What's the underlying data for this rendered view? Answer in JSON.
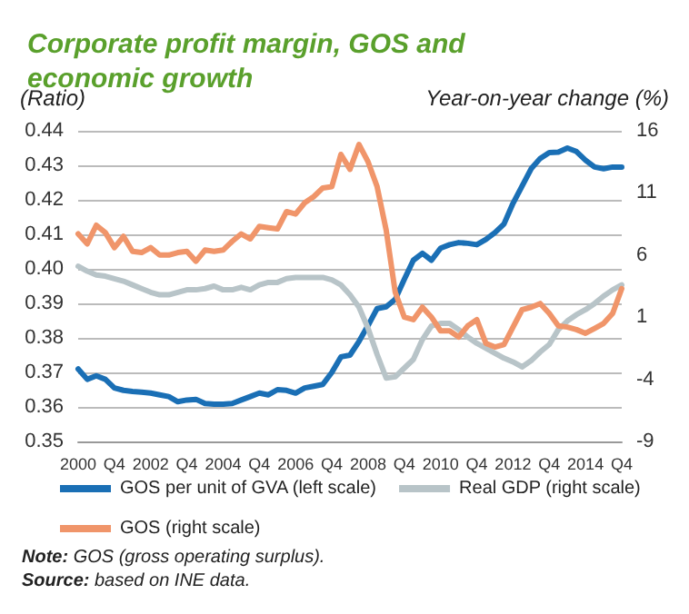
{
  "chart_data": {
    "type": "line",
    "title": "Corporate profit margin, GOS and economic growth",
    "ylabel": "(Ratio)",
    "y2label": "Year-on-year change (%)",
    "categories": [
      "2000",
      null,
      null,
      null,
      "Q4",
      null,
      null,
      null,
      "2002",
      null,
      null,
      null,
      "Q4",
      null,
      null,
      null,
      "2004",
      null,
      null,
      null,
      "Q4",
      null,
      null,
      null,
      "2006",
      null,
      null,
      null,
      "Q4",
      null,
      null,
      null,
      "2008",
      null,
      null,
      null,
      "Q4",
      null,
      null,
      null,
      "2010",
      null,
      null,
      null,
      "Q4",
      null,
      null,
      null,
      "2012",
      null,
      null,
      null,
      "Q4",
      null,
      null,
      null,
      "2014",
      null,
      null,
      null,
      "Q4"
    ],
    "series": [
      {
        "name": "GOS per unit of GVA (left scale)",
        "color": "#1a6fb5",
        "values": [
          0.371,
          0.368,
          0.369,
          0.368,
          0.3655,
          0.3648,
          0.3645,
          0.3643,
          0.364,
          0.3635,
          0.363,
          0.3615,
          0.362,
          0.3622,
          0.361,
          0.3608,
          0.3608,
          0.361,
          0.362,
          0.363,
          0.364,
          0.3635,
          0.365,
          0.3648,
          0.364,
          0.3655,
          0.366,
          0.3665,
          0.37,
          0.3745,
          0.375,
          0.379,
          0.3836,
          0.3885,
          0.389,
          0.3912,
          0.397,
          0.4025,
          0.4045,
          0.4025,
          0.406,
          0.407,
          0.4076,
          0.4074,
          0.407,
          0.4085,
          0.4105,
          0.413,
          0.419,
          0.424,
          0.429,
          0.432,
          0.4337,
          0.4338,
          0.435,
          0.434,
          0.4315,
          0.4295,
          0.429,
          0.4295,
          0.4295
        ]
      },
      {
        "name": "Real GDP (right scale)",
        "color": "#b8c4c8",
        "axis": "y2",
        "values": [
          5.1,
          4.7,
          4.4,
          4.3,
          4.1,
          3.9,
          3.6,
          3.3,
          3.0,
          2.8,
          2.8,
          3.0,
          3.2,
          3.2,
          3.3,
          3.5,
          3.2,
          3.2,
          3.4,
          3.2,
          3.6,
          3.8,
          3.8,
          4.1,
          4.2,
          4.2,
          4.2,
          4.2,
          4.0,
          3.6,
          2.8,
          1.8,
          0.1,
          -2.0,
          -3.9,
          -3.8,
          -3.1,
          -2.4,
          -0.8,
          0.3,
          0.5,
          0.5,
          0.0,
          -0.6,
          -1.1,
          -1.5,
          -1.9,
          -2.3,
          -2.6,
          -3.0,
          -2.5,
          -1.8,
          -1.2,
          0.0,
          0.7,
          1.2,
          1.6,
          2.1,
          2.7,
          3.2,
          3.6
        ]
      },
      {
        "name": "GOS (right scale)",
        "color": "#f0956a",
        "axis": "y2",
        "values": [
          7.7,
          6.9,
          8.4,
          7.8,
          6.6,
          7.5,
          6.3,
          6.2,
          6.6,
          6.0,
          6.0,
          6.2,
          6.3,
          5.5,
          6.4,
          6.3,
          6.4,
          7.1,
          7.7,
          7.3,
          8.3,
          8.2,
          8.1,
          9.5,
          9.3,
          10.2,
          10.7,
          11.4,
          11.5,
          14.1,
          12.9,
          14.9,
          13.5,
          11.5,
          8.0,
          3.0,
          1.0,
          0.8,
          1.8,
          1.0,
          -0.1,
          -0.1,
          -0.6,
          0.3,
          0.8,
          -1.1,
          -1.4,
          -1.2,
          0.2,
          1.6,
          1.8,
          2.1,
          1.3,
          0.3,
          0.2,
          0.0,
          -0.3,
          0.1,
          0.5,
          1.3,
          3.3
        ]
      }
    ],
    "ylim": [
      0.35,
      0.44
    ],
    "yticks": [
      {
        "value": 0.35,
        "label": "0.35"
      },
      {
        "value": 0.36,
        "label": "0.36"
      },
      {
        "value": 0.37,
        "label": "0.37"
      },
      {
        "value": 0.38,
        "label": "0.38"
      },
      {
        "value": 0.39,
        "label": "0.39"
      },
      {
        "value": 0.4,
        "label": "0.40"
      },
      {
        "value": 0.41,
        "label": "0.41"
      },
      {
        "value": 0.42,
        "label": "0.42"
      },
      {
        "value": 0.43,
        "label": "0.43"
      },
      {
        "value": 0.44,
        "label": "0.44"
      }
    ],
    "y2lim": [
      -9,
      16
    ],
    "y2ticks": [
      -9,
      -4,
      1,
      6,
      11,
      16
    ],
    "grid": "y",
    "legend": "bottom",
    "marker": "none",
    "line_style": "solid",
    "annotations": [
      "Note: GOS (gross operating surplus).",
      "Source: based on INE data."
    ]
  }
}
